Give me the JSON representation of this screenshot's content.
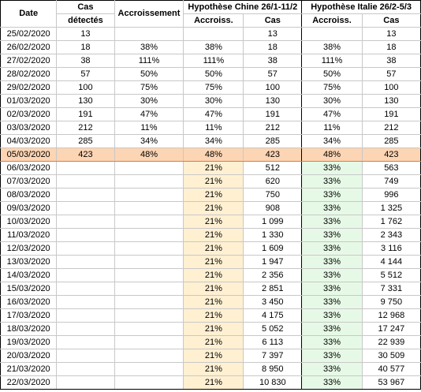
{
  "headers": {
    "date": "Date",
    "cas_detectes_l1": "Cas",
    "cas_detectes_l2": "détectés",
    "accroissement": "Accroissement",
    "hyp_chine": "Hypothèse Chine 26/1-11/2",
    "hyp_italie": "Hypothèse Italie 26/2-5/3",
    "accroiss": "Accroiss.",
    "cas": "Cas"
  },
  "colors": {
    "highlight_row": "#fcd5b4",
    "chine_fill": "#fff0d2",
    "italie_fill": "#e6f9e6"
  },
  "rows": [
    {
      "date": "25/02/2020",
      "cas": "13",
      "accr": "",
      "c_accr": "",
      "c_cas": "13",
      "i_accr": "",
      "i_cas": "13"
    },
    {
      "date": "26/02/2020",
      "cas": "18",
      "accr": "38%",
      "c_accr": "38%",
      "c_cas": "18",
      "i_accr": "38%",
      "i_cas": "18"
    },
    {
      "date": "27/02/2020",
      "cas": "38",
      "accr": "111%",
      "c_accr": "111%",
      "c_cas": "38",
      "i_accr": "111%",
      "i_cas": "38"
    },
    {
      "date": "28/02/2020",
      "cas": "57",
      "accr": "50%",
      "c_accr": "50%",
      "c_cas": "57",
      "i_accr": "50%",
      "i_cas": "57"
    },
    {
      "date": "29/02/2020",
      "cas": "100",
      "accr": "75%",
      "c_accr": "75%",
      "c_cas": "100",
      "i_accr": "75%",
      "i_cas": "100"
    },
    {
      "date": "01/03/2020",
      "cas": "130",
      "accr": "30%",
      "c_accr": "30%",
      "c_cas": "130",
      "i_accr": "30%",
      "i_cas": "130"
    },
    {
      "date": "02/03/2020",
      "cas": "191",
      "accr": "47%",
      "c_accr": "47%",
      "c_cas": "191",
      "i_accr": "47%",
      "i_cas": "191"
    },
    {
      "date": "03/03/2020",
      "cas": "212",
      "accr": "11%",
      "c_accr": "11%",
      "c_cas": "212",
      "i_accr": "11%",
      "i_cas": "212"
    },
    {
      "date": "04/03/2020",
      "cas": "285",
      "accr": "34%",
      "c_accr": "34%",
      "c_cas": "285",
      "i_accr": "34%",
      "i_cas": "285"
    },
    {
      "date": "05/03/2020",
      "cas": "423",
      "accr": "48%",
      "c_accr": "48%",
      "c_cas": "423",
      "i_accr": "48%",
      "i_cas": "423",
      "highlight": true
    },
    {
      "date": "06/03/2020",
      "cas": "",
      "accr": "",
      "c_accr": "21%",
      "c_cas": "512",
      "i_accr": "33%",
      "i_cas": "563",
      "proj": true
    },
    {
      "date": "07/03/2020",
      "cas": "",
      "accr": "",
      "c_accr": "21%",
      "c_cas": "620",
      "i_accr": "33%",
      "i_cas": "749",
      "proj": true
    },
    {
      "date": "08/03/2020",
      "cas": "",
      "accr": "",
      "c_accr": "21%",
      "c_cas": "750",
      "i_accr": "33%",
      "i_cas": "996",
      "proj": true
    },
    {
      "date": "09/03/2020",
      "cas": "",
      "accr": "",
      "c_accr": "21%",
      "c_cas": "908",
      "i_accr": "33%",
      "i_cas": "1 325",
      "proj": true
    },
    {
      "date": "10/03/2020",
      "cas": "",
      "accr": "",
      "c_accr": "21%",
      "c_cas": "1 099",
      "i_accr": "33%",
      "i_cas": "1 762",
      "proj": true
    },
    {
      "date": "11/03/2020",
      "cas": "",
      "accr": "",
      "c_accr": "21%",
      "c_cas": "1 330",
      "i_accr": "33%",
      "i_cas": "2 343",
      "proj": true
    },
    {
      "date": "12/03/2020",
      "cas": "",
      "accr": "",
      "c_accr": "21%",
      "c_cas": "1 609",
      "i_accr": "33%",
      "i_cas": "3 116",
      "proj": true
    },
    {
      "date": "13/03/2020",
      "cas": "",
      "accr": "",
      "c_accr": "21%",
      "c_cas": "1 947",
      "i_accr": "33%",
      "i_cas": "4 144",
      "proj": true
    },
    {
      "date": "14/03/2020",
      "cas": "",
      "accr": "",
      "c_accr": "21%",
      "c_cas": "2 356",
      "i_accr": "33%",
      "i_cas": "5 512",
      "proj": true
    },
    {
      "date": "15/03/2020",
      "cas": "",
      "accr": "",
      "c_accr": "21%",
      "c_cas": "2 851",
      "i_accr": "33%",
      "i_cas": "7 331",
      "proj": true
    },
    {
      "date": "16/03/2020",
      "cas": "",
      "accr": "",
      "c_accr": "21%",
      "c_cas": "3 450",
      "i_accr": "33%",
      "i_cas": "9 750",
      "proj": true
    },
    {
      "date": "17/03/2020",
      "cas": "",
      "accr": "",
      "c_accr": "21%",
      "c_cas": "4 175",
      "i_accr": "33%",
      "i_cas": "12 968",
      "proj": true
    },
    {
      "date": "18/03/2020",
      "cas": "",
      "accr": "",
      "c_accr": "21%",
      "c_cas": "5 052",
      "i_accr": "33%",
      "i_cas": "17 247",
      "proj": true
    },
    {
      "date": "19/03/2020",
      "cas": "",
      "accr": "",
      "c_accr": "21%",
      "c_cas": "6 113",
      "i_accr": "33%",
      "i_cas": "22 939",
      "proj": true
    },
    {
      "date": "20/03/2020",
      "cas": "",
      "accr": "",
      "c_accr": "21%",
      "c_cas": "7 397",
      "i_accr": "33%",
      "i_cas": "30 509",
      "proj": true
    },
    {
      "date": "21/03/2020",
      "cas": "",
      "accr": "",
      "c_accr": "21%",
      "c_cas": "8 950",
      "i_accr": "33%",
      "i_cas": "40 577",
      "proj": true
    },
    {
      "date": "22/03/2020",
      "cas": "",
      "accr": "",
      "c_accr": "21%",
      "c_cas": "10 830",
      "i_accr": "33%",
      "i_cas": "53 967",
      "proj": true
    }
  ]
}
